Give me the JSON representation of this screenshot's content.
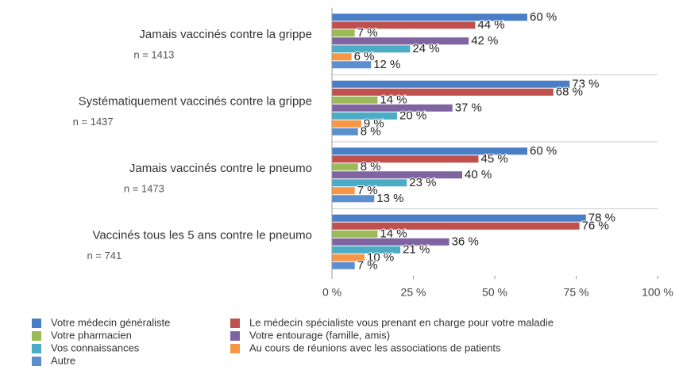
{
  "chart_data": {
    "type": "hbar",
    "categories": [
      "Jamais vaccinés contre la grippe",
      "Systématiquement vaccinés contre la grippe",
      "Jamais vaccinés contre le pneumo",
      "Vaccinés tous les 5 ans contre le pneumo"
    ],
    "sample_sizes": [
      "n = 1413",
      "n = 1437",
      "n = 1473",
      "n = 741"
    ],
    "series": [
      {
        "name": "Votre médecin généraliste",
        "color": "#4a7ec6",
        "values": [
          60,
          73,
          60,
          78
        ],
        "value_labels": [
          "60 %",
          "73 %",
          "60 %",
          "78 %"
        ]
      },
      {
        "name": "Le médecin spécialiste vous prenant en charge pour votre maladie",
        "color": "#c0504d",
        "values": [
          44,
          68,
          45,
          76
        ],
        "value_labels": [
          "44 %",
          "68 %",
          "45 %",
          "76 %"
        ]
      },
      {
        "name": "Votre pharmacien",
        "color": "#9bbb59",
        "values": [
          7,
          14,
          8,
          14
        ],
        "value_labels": [
          "7 %",
          "14 %",
          "8 %",
          "14 %"
        ]
      },
      {
        "name": "Votre entourage (famille, amis)",
        "color": "#8064a2",
        "values": [
          42,
          37,
          40,
          36
        ],
        "value_labels": [
          "42 %",
          "37 %",
          "40 %",
          "36 %"
        ]
      },
      {
        "name": "Vos connaissances",
        "color": "#4bacc6",
        "values": [
          24,
          20,
          23,
          21
        ],
        "value_labels": [
          "24 %",
          "20 %",
          "23 %",
          "21 %"
        ]
      },
      {
        "name": "Au cours de réunions avec les associations de patients",
        "color": "#f79646",
        "values": [
          6,
          9,
          7,
          10
        ],
        "value_labels": [
          "6 %",
          "9 %",
          "7 %",
          "10 %"
        ]
      },
      {
        "name": "Autre",
        "color": "#5b8fd0",
        "values": [
          12,
          8,
          13,
          7
        ],
        "value_labels": [
          "12 %",
          "8 %",
          "13 %",
          "7 %"
        ]
      }
    ],
    "xlim": [
      0,
      100
    ],
    "xticks": [
      {
        "value": 0,
        "label": "0 %"
      },
      {
        "value": 25,
        "label": "25 %"
      },
      {
        "value": 50,
        "label": "50 %"
      },
      {
        "value": 75,
        "label": "75 %"
      },
      {
        "value": 100,
        "label": "100 %"
      }
    ],
    "grid": false
  }
}
